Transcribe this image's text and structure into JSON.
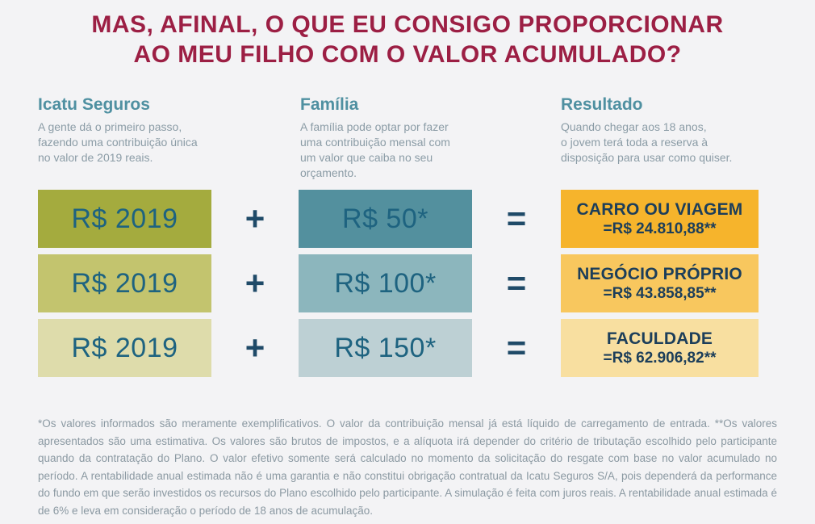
{
  "title": {
    "line1": "MAS, AFINAL, O QUE EU CONSIGO PROPORCIONAR",
    "line2": "AO MEU FILHO COM O VALOR ACUMULADO?"
  },
  "columns": [
    {
      "heading": "Icatu Seguros",
      "description": "A gente dá o primeiro passo,\nfazendo uma contribuição única\nno valor de 2019 reais."
    },
    {
      "heading": "Família",
      "description": "A família pode optar por fazer\numa contribuição mensal com\num valor que caiba no seu\norçamento."
    },
    {
      "heading": "Resultado",
      "description": "Quando chegar aos 18 anos,\no jovem terá toda a reserva à\ndisposição para usar como quiser."
    }
  ],
  "operators": {
    "plus": "+",
    "equals": "="
  },
  "rows": [
    {
      "initial": "R$ 2019",
      "monthly": "R$ 50*",
      "result_title": "CARRO OU VIAGEM",
      "result_value": "=R$ 24.810,88**",
      "initial_bg": "#a4ab3e",
      "monthly_bg": "#53909e",
      "result_bg": "#f6b42c"
    },
    {
      "initial": "R$ 2019",
      "monthly": "R$ 100*",
      "result_title": "NEGÓCIO PRÓPRIO",
      "result_value": "=R$ 43.858,85**",
      "initial_bg": "#c3c46e",
      "monthly_bg": "#8cb6bd",
      "result_bg": "#f8c75e"
    },
    {
      "initial": "R$ 2019",
      "monthly": "R$ 150*",
      "result_title": "FACULDADE",
      "result_value": "=R$ 62.906,82**",
      "initial_bg": "#dedcab",
      "monthly_bg": "#bdd0d4",
      "result_bg": "#f8dfa0"
    }
  ],
  "colors": {
    "background": "#f3f3f5",
    "title": "#9c1f44",
    "heading_teal": "#4f90a1",
    "body_gray": "#8b9ca6",
    "value_blue": "#1e6380",
    "result_navy": "#1c3e5a"
  },
  "footnote": "*Os valores informados são meramente exemplificativos. O valor da contribuição mensal já está líquido de carregamento de entrada. **Os valores apresentados são uma estimativa. Os valores são brutos de impostos, e a alíquota irá depender do critério de tributação escolhido pelo participante quando da contratação do Plano. O valor efetivo somente será calculado no momento da solicitação do resgate com base no valor acumulado no período. A rentabilidade anual estimada não é uma garantia e não constitui obrigação contratual da Icatu Seguros S/A, pois dependerá da performance do fundo em que serão investidos os recursos do Plano escolhido pelo participante. A simulação é feita com juros reais. A rentabilidade anual estimada é de 6% e leva em consideração o período de 18 anos de acumulação."
}
